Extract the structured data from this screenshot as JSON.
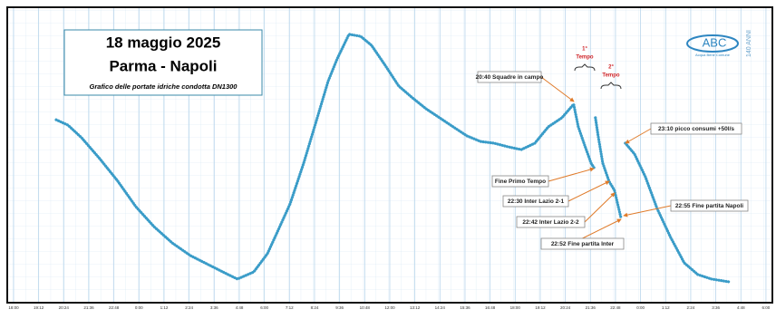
{
  "chart_data": {
    "type": "line",
    "title": "18 maggio 2025",
    "subtitle": "Parma - Napoli",
    "caption": "Grafico delle portate idriche condotta DN1300",
    "logo": {
      "name": "ABC",
      "tagline": "Acqua Bene Comune",
      "badge": "140 ANNI"
    },
    "periods": [
      {
        "line1": "1°",
        "line2": "Tempo"
      },
      {
        "line1": "2°",
        "line2": "Tempo"
      }
    ],
    "color": "#3a9cc8",
    "x": [
      2.04,
      2.6,
      3.25,
      4.12,
      4.99,
      5.85,
      6.72,
      7.59,
      8.46,
      9.32,
      10.19,
      10.71,
      11.49,
      12.14,
      12.58,
      13.23,
      13.88,
      14.53,
      15.05,
      15.48,
      16.05,
      16.61,
      17.13,
      17.78,
      18.43,
      19.08,
      19.73,
      20.38,
      21.03,
      21.69,
      22.34,
      22.99,
      23.64,
      24.29,
      24.94,
      25.59,
      26.24,
      26.8,
      27.02,
      27.32,
      27.63,
      27.8,
      null,
      27.84,
      27.97,
      28.19,
      28.49,
      28.75,
      29.06,
      null,
      29.27,
      29.71,
      30.23,
      30.79,
      31.44,
      32.09,
      32.74,
      33.39,
      34.26
    ],
    "values": [
      62.8,
      61.0,
      56.7,
      49.5,
      41.8,
      33.1,
      26.3,
      20.7,
      16.4,
      13.3,
      10.2,
      8.4,
      10.8,
      17.0,
      23.8,
      34.1,
      48.0,
      63.5,
      75.9,
      83.6,
      92.0,
      91.3,
      88.2,
      81.4,
      74.3,
      70.3,
      66.6,
      63.5,
      60.4,
      57.3,
      55.4,
      54.8,
      53.6,
      52.6,
      54.8,
      60.4,
      63.5,
      68.1,
      60.4,
      54.2,
      48.0,
      46.1,
      null,
      63.5,
      57.3,
      48.0,
      41.8,
      38.7,
      29.4,
      null,
      54.8,
      51.1,
      43.3,
      32.5,
      22.6,
      13.9,
      9.9,
      8.4,
      7.4
    ],
    "xlim": [
      -0.65,
      36.48
    ],
    "ylim": [
      0,
      100
    ],
    "xticks": [
      {
        "value": 0,
        "label": "18:00"
      },
      {
        "value": 1.2,
        "label": "19:12"
      },
      {
        "value": 2.4,
        "label": "20:24"
      },
      {
        "value": 3.6,
        "label": "21:36"
      },
      {
        "value": 4.8,
        "label": "22:48"
      },
      {
        "value": 6,
        "label": "0:00"
      },
      {
        "value": 7.2,
        "label": "1:12"
      },
      {
        "value": 8.4,
        "label": "2:24"
      },
      {
        "value": 9.6,
        "label": "3:36"
      },
      {
        "value": 10.8,
        "label": "4:48"
      },
      {
        "value": 12,
        "label": "6:00"
      },
      {
        "value": 13.2,
        "label": "7:12"
      },
      {
        "value": 14.4,
        "label": "8:24"
      },
      {
        "value": 15.6,
        "label": "9:36"
      },
      {
        "value": 16.8,
        "label": "10:48"
      },
      {
        "value": 18,
        "label": "12:00"
      },
      {
        "value": 19.2,
        "label": "13:12"
      },
      {
        "value": 20.4,
        "label": "14:24"
      },
      {
        "value": 21.6,
        "label": "15:36"
      },
      {
        "value": 22.8,
        "label": "16:48"
      },
      {
        "value": 24,
        "label": "18:00"
      },
      {
        "value": 25.2,
        "label": "19:12"
      },
      {
        "value": 26.4,
        "label": "20:24"
      },
      {
        "value": 27.6,
        "label": "21:36"
      },
      {
        "value": 28.8,
        "label": "22:48"
      },
      {
        "value": 30,
        "label": "0:00"
      },
      {
        "value": 31.2,
        "label": "1:12"
      },
      {
        "value": 32.4,
        "label": "2:24"
      },
      {
        "value": 33.6,
        "label": "3:36"
      },
      {
        "value": 34.8,
        "label": "4:48"
      },
      {
        "value": 36,
        "label": "6:00"
      }
    ],
    "grid": true,
    "annotations": [
      "20:40 Squadre in campo",
      "23:10 picco consumi +50l/s",
      "Fine Primo Tempo",
      "22:30 Inter Lazio 2-1",
      "22:55 Fine partita Napoli",
      "22:42 Inter Lazio 2-2",
      "22:52 Fine partita Inter"
    ]
  }
}
